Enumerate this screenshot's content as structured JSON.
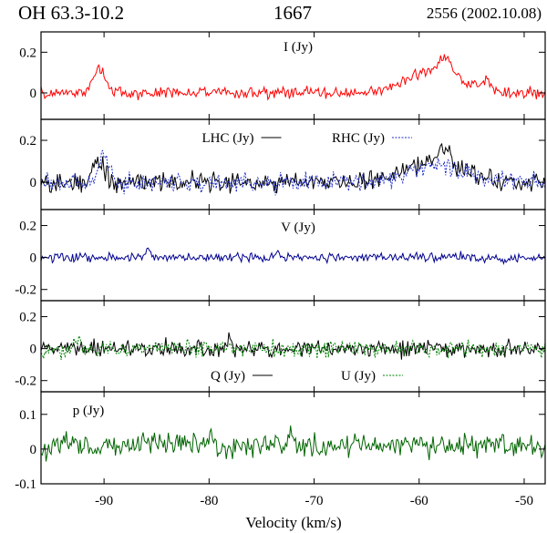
{
  "header": {
    "source": "OH 63.3-10.2",
    "frequency": "1667",
    "observation": "2556 (2002.10.08)"
  },
  "chart_data": {
    "type": "line",
    "xlabel": "Velocity (km/s)",
    "xlim": [
      -96,
      -48
    ],
    "xticks": [
      -90,
      -80,
      -70,
      -60,
      -50
    ],
    "xtick_labels": [
      "-90",
      "-80",
      "-70",
      "-60",
      "-50"
    ],
    "panels": [
      {
        "id": "I",
        "label": "I (Jy)",
        "ylim": [
          -0.13,
          0.3
        ],
        "yticks": [
          0,
          0.2
        ],
        "ytick_labels": [
          "0",
          "0.2"
        ],
        "series": [
          {
            "name": "I",
            "color": "#ff0000",
            "dash": "",
            "noise": 0.025,
            "features": [
              [
                -90.5,
                0.12,
                0.6
              ],
              [
                -58.5,
                0.11,
                2.5
              ],
              [
                -57.5,
                0.08,
                0.5
              ],
              [
                -53.8,
                0.04,
                0.6
              ]
            ]
          }
        ]
      },
      {
        "id": "LR",
        "label": "LHC (Jy)",
        "label2": "RHC (Jy)",
        "ylim": [
          -0.13,
          0.3
        ],
        "yticks": [
          0,
          0.2
        ],
        "ytick_labels": [
          "0",
          "0.2"
        ],
        "series": [
          {
            "name": "LHC",
            "color": "#000000",
            "dash": "",
            "noise": 0.04,
            "features": [
              [
                -90.5,
                0.1,
                0.6
              ],
              [
                -58.5,
                0.1,
                2.5
              ],
              [
                -57.5,
                0.07,
                0.5
              ]
            ]
          },
          {
            "name": "RHC",
            "color": "#1e2cc8",
            "dash": "2,1.5",
            "noise": 0.04,
            "features": [
              [
                -90,
                0.13,
                0.5
              ],
              [
                -58.5,
                0.08,
                2.5
              ]
            ]
          }
        ]
      },
      {
        "id": "V",
        "label": "V (Jy)",
        "ylim": [
          -0.27,
          0.3
        ],
        "yticks": [
          -0.2,
          0,
          0.2
        ],
        "ytick_labels": [
          "-0.2",
          "0",
          "0.2"
        ],
        "series": [
          {
            "name": "V",
            "color": "#000090",
            "dash": "",
            "noise": 0.025,
            "features": [
              [
                -85.8,
                0.05,
                0.2
              ],
              [
                -73.5,
                0.04,
                0.2
              ]
            ]
          }
        ]
      },
      {
        "id": "QU",
        "label": "Q (Jy)",
        "label2": "U (Jy)",
        "ylim": [
          -0.27,
          0.3
        ],
        "yticks": [
          -0.2,
          0,
          0.2
        ],
        "ytick_labels": [
          "-0.2",
          "0",
          "0.2"
        ],
        "series": [
          {
            "name": "Q",
            "color": "#000000",
            "dash": "",
            "noise": 0.045,
            "features": [
              [
                -78,
                0.07,
                0.2
              ]
            ]
          },
          {
            "name": "U",
            "color": "#008000",
            "dash": "2,1.5",
            "noise": 0.045,
            "features": [
              [
                -92.5,
                0.06,
                0.3
              ]
            ]
          }
        ]
      },
      {
        "id": "P",
        "label": "p (Jy)",
        "ylim": [
          -0.1,
          0.165
        ],
        "yticks": [
          -0.1,
          0,
          0.1
        ],
        "ytick_labels": [
          "-0.1",
          "0",
          "0.1"
        ],
        "series": [
          {
            "name": "p",
            "color": "#006400",
            "dash": "",
            "noise": 0.03,
            "base": 0.01,
            "features": [
              [
                -72.2,
                0.05,
                0.2
              ],
              [
                -79.8,
                0.04,
                0.2
              ]
            ]
          }
        ]
      }
    ]
  }
}
